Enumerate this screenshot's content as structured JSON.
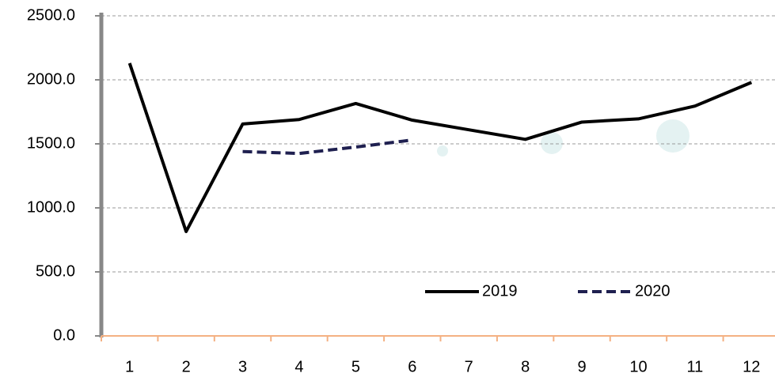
{
  "chart_data": {
    "type": "line",
    "categories": [
      "1",
      "2",
      "3",
      "4",
      "5",
      "6",
      "7",
      "8",
      "9",
      "10",
      "11",
      "12"
    ],
    "series": [
      {
        "name": "2019",
        "color": "#000000",
        "dashed": false,
        "values": [
          2130,
          815,
          1655,
          1690,
          1815,
          1685,
          1610,
          1535,
          1670,
          1695,
          1795,
          1980
        ]
      },
      {
        "name": "2020",
        "color": "#1f2050",
        "dashed": true,
        "values": [
          null,
          null,
          1440,
          1425,
          1475,
          1530,
          null,
          null,
          null,
          null,
          null,
          null
        ]
      }
    ],
    "ylim": [
      0,
      2500
    ],
    "yticks": [
      {
        "value": 0,
        "label": "0.0"
      },
      {
        "value": 500,
        "label": "500.0"
      },
      {
        "value": 1000,
        "label": "1000.0"
      },
      {
        "value": 1500,
        "label": "1500.0"
      },
      {
        "value": 2000,
        "label": "2000.0"
      },
      {
        "value": 2500,
        "label": "2500.0"
      }
    ],
    "grid": true,
    "legend": "lower-right"
  }
}
